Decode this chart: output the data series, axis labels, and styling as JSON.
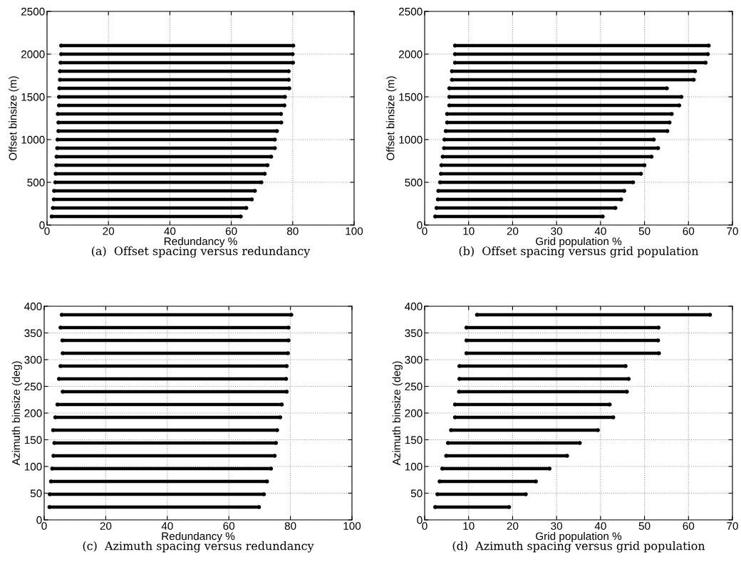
{
  "chart_data": [
    {
      "type": "line",
      "title": "(a)  Offset spacing versus redundancy",
      "xlabel": "Redundancy %",
      "ylabel": "Offset binsize (m)",
      "color": "#000000",
      "marker": "circle",
      "line_style": "solid",
      "grid": true,
      "xlim": [
        0,
        100
      ],
      "xticks": [
        0,
        20,
        40,
        60,
        80,
        100
      ],
      "ylim": [
        0,
        2500
      ],
      "yticks": [
        0,
        500,
        1000,
        1500,
        2000,
        2500
      ],
      "series": [
        {
          "x": [
            1.5,
            63.1
          ],
          "values": [
            100,
            100
          ]
        },
        {
          "x": [
            1.9,
            64.9
          ],
          "values": [
            200,
            200
          ]
        },
        {
          "x": [
            2.2,
            66.7
          ],
          "values": [
            300,
            300
          ]
        },
        {
          "x": [
            2.3,
            67.7
          ],
          "values": [
            400,
            400
          ]
        },
        {
          "x": [
            2.7,
            69.8
          ],
          "values": [
            500,
            500
          ]
        },
        {
          "x": [
            2.8,
            70.9
          ],
          "values": [
            600,
            600
          ]
        },
        {
          "x": [
            3.0,
            71.8
          ],
          "values": [
            700,
            700
          ]
        },
        {
          "x": [
            3.1,
            73.0
          ],
          "values": [
            800,
            800
          ]
        },
        {
          "x": [
            3.3,
            74.2
          ],
          "values": [
            900,
            900
          ]
        },
        {
          "x": [
            3.4,
            74.2
          ],
          "values": [
            1000,
            1000
          ]
        },
        {
          "x": [
            3.7,
            74.9
          ],
          "values": [
            1100,
            1100
          ]
        },
        {
          "x": [
            3.7,
            76.3
          ],
          "values": [
            1200,
            1200
          ]
        },
        {
          "x": [
            3.5,
            76.2
          ],
          "values": [
            1300,
            1300
          ]
        },
        {
          "x": [
            3.9,
            77.3
          ],
          "values": [
            1400,
            1400
          ]
        },
        {
          "x": [
            3.9,
            77.5
          ],
          "values": [
            1500,
            1500
          ]
        },
        {
          "x": [
            4.0,
            78.9
          ],
          "values": [
            1600,
            1600
          ]
        },
        {
          "x": [
            4.2,
            78.7
          ],
          "values": [
            1700,
            1700
          ]
        },
        {
          "x": [
            4.2,
            78.7
          ],
          "values": [
            1800,
            1800
          ]
        },
        {
          "x": [
            4.4,
            80.1
          ],
          "values": [
            1900,
            1900
          ]
        },
        {
          "x": [
            4.6,
            80.0
          ],
          "values": [
            2000,
            2000
          ]
        },
        {
          "x": [
            4.6,
            80.2
          ],
          "values": [
            2100,
            2100
          ]
        }
      ]
    },
    {
      "type": "line",
      "title": "(b)  Offset spacing versus grid population",
      "xlabel": "Grid population %",
      "ylabel": "Offset binsize (m)",
      "color": "#000000",
      "marker": "circle",
      "line_style": "solid",
      "grid": true,
      "xlim": [
        0,
        70
      ],
      "xticks": [
        0,
        10,
        20,
        30,
        40,
        50,
        60,
        70
      ],
      "ylim": [
        0,
        2500
      ],
      "yticks": [
        0,
        500,
        1000,
        1500,
        2000,
        2500
      ],
      "series": [
        {
          "x": [
            2.4,
            40.5
          ],
          "values": [
            100,
            100
          ]
        },
        {
          "x": [
            2.7,
            43.4
          ],
          "values": [
            200,
            200
          ]
        },
        {
          "x": [
            3.0,
            44.7
          ],
          "values": [
            300,
            300
          ]
        },
        {
          "x": [
            3.1,
            45.4
          ],
          "values": [
            400,
            400
          ]
        },
        {
          "x": [
            3.5,
            47.4
          ],
          "values": [
            500,
            500
          ]
        },
        {
          "x": [
            3.7,
            49.2
          ],
          "values": [
            600,
            600
          ]
        },
        {
          "x": [
            3.8,
            50.0
          ],
          "values": [
            700,
            700
          ]
        },
        {
          "x": [
            4.1,
            51.6
          ],
          "values": [
            800,
            800
          ]
        },
        {
          "x": [
            4.4,
            53.1
          ],
          "values": [
            900,
            900
          ]
        },
        {
          "x": [
            4.5,
            52.1
          ],
          "values": [
            1000,
            1000
          ]
        },
        {
          "x": [
            4.8,
            55.2
          ],
          "values": [
            1100,
            1100
          ]
        },
        {
          "x": [
            5.1,
            55.7
          ],
          "values": [
            1200,
            1200
          ]
        },
        {
          "x": [
            5.1,
            56.2
          ],
          "values": [
            1300,
            1300
          ]
        },
        {
          "x": [
            5.6,
            57.9
          ],
          "values": [
            1400,
            1400
          ]
        },
        {
          "x": [
            5.6,
            58.4
          ],
          "values": [
            1500,
            1500
          ]
        },
        {
          "x": [
            5.6,
            55.1
          ],
          "values": [
            1600,
            1600
          ]
        },
        {
          "x": [
            6.2,
            61.2
          ],
          "values": [
            1700,
            1700
          ]
        },
        {
          "x": [
            6.2,
            61.5
          ],
          "values": [
            1800,
            1800
          ]
        },
        {
          "x": [
            6.9,
            63.9
          ],
          "values": [
            1900,
            1900
          ]
        },
        {
          "x": [
            6.9,
            64.4
          ],
          "values": [
            2000,
            2000
          ]
        },
        {
          "x": [
            6.9,
            64.6
          ],
          "values": [
            2100,
            2100
          ]
        }
      ]
    },
    {
      "type": "line",
      "title": "(c)  Azimuth spacing versus redundancy",
      "xlabel": "Redundancy %",
      "ylabel": "Azimuth binsize (deg)",
      "color": "#000000",
      "marker": "circle",
      "line_style": "solid",
      "grid": true,
      "xlim": [
        0,
        100
      ],
      "xticks": [
        0,
        20,
        40,
        60,
        80,
        100
      ],
      "ylim": [
        0,
        400
      ],
      "yticks": [
        0,
        50,
        100,
        150,
        200,
        250,
        300,
        350,
        400
      ],
      "series": [
        {
          "x": [
            1.7,
            69.8
          ],
          "values": [
            24,
            24
          ]
        },
        {
          "x": [
            1.8,
            71.4
          ],
          "values": [
            48,
            48
          ]
        },
        {
          "x": [
            2.2,
            72.4
          ],
          "values": [
            72,
            72
          ]
        },
        {
          "x": [
            2.6,
            73.7
          ],
          "values": [
            96,
            96
          ]
        },
        {
          "x": [
            3.0,
            74.9
          ],
          "values": [
            120,
            120
          ]
        },
        {
          "x": [
            3.3,
            75.3
          ],
          "values": [
            144,
            144
          ]
        },
        {
          "x": [
            2.9,
            75.7
          ],
          "values": [
            168,
            168
          ]
        },
        {
          "x": [
            3.6,
            76.7
          ],
          "values": [
            192,
            192
          ]
        },
        {
          "x": [
            4.3,
            77.2
          ],
          "values": [
            216,
            216
          ]
        },
        {
          "x": [
            6.0,
            78.8
          ],
          "values": [
            240,
            240
          ]
        },
        {
          "x": [
            4.8,
            78.6
          ],
          "values": [
            264,
            264
          ]
        },
        {
          "x": [
            5.3,
            78.8
          ],
          "values": [
            288,
            288
          ]
        },
        {
          "x": [
            6.0,
            79.2
          ],
          "values": [
            312,
            312
          ]
        },
        {
          "x": [
            5.9,
            79.4
          ],
          "values": [
            336,
            336
          ]
        },
        {
          "x": [
            5.3,
            79.4
          ],
          "values": [
            360,
            360
          ]
        },
        {
          "x": [
            5.7,
            80.3
          ],
          "values": [
            384,
            384
          ]
        }
      ]
    },
    {
      "type": "line",
      "title": "(d)  Azimuth spacing versus grid population",
      "xlabel": "Grid population %",
      "ylabel": "Azimuth binsize (deg)",
      "color": "#000000",
      "marker": "circle",
      "line_style": "solid",
      "grid": true,
      "xlim": [
        0,
        70
      ],
      "xticks": [
        0,
        10,
        20,
        30,
        40,
        50,
        60,
        70
      ],
      "ylim": [
        0,
        400
      ],
      "yticks": [
        0,
        50,
        100,
        150,
        200,
        250,
        300,
        350,
        400
      ],
      "series": [
        {
          "x": [
            2.4,
            19.2
          ],
          "values": [
            24,
            24
          ]
        },
        {
          "x": [
            2.9,
            23.0
          ],
          "values": [
            48,
            48
          ]
        },
        {
          "x": [
            3.4,
            25.3
          ],
          "values": [
            72,
            72
          ]
        },
        {
          "x": [
            4.0,
            28.4
          ],
          "values": [
            96,
            96
          ]
        },
        {
          "x": [
            4.9,
            32.4
          ],
          "values": [
            120,
            120
          ]
        },
        {
          "x": [
            5.3,
            35.3
          ],
          "values": [
            144,
            144
          ]
        },
        {
          "x": [
            6.0,
            39.4
          ],
          "values": [
            168,
            168
          ]
        },
        {
          "x": [
            6.9,
            42.9
          ],
          "values": [
            192,
            192
          ]
        },
        {
          "x": [
            6.9,
            42.1
          ],
          "values": [
            216,
            216
          ]
        },
        {
          "x": [
            7.8,
            46.0
          ],
          "values": [
            240,
            240
          ]
        },
        {
          "x": [
            7.9,
            46.4
          ],
          "values": [
            264,
            264
          ]
        },
        {
          "x": [
            7.9,
            45.7
          ],
          "values": [
            288,
            288
          ]
        },
        {
          "x": [
            9.5,
            53.3
          ],
          "values": [
            312,
            312
          ]
        },
        {
          "x": [
            9.5,
            53.1
          ],
          "values": [
            336,
            336
          ]
        },
        {
          "x": [
            9.5,
            53.2
          ],
          "values": [
            360,
            360
          ]
        },
        {
          "x": [
            11.9,
            64.9
          ],
          "values": [
            384,
            384
          ]
        }
      ]
    }
  ]
}
